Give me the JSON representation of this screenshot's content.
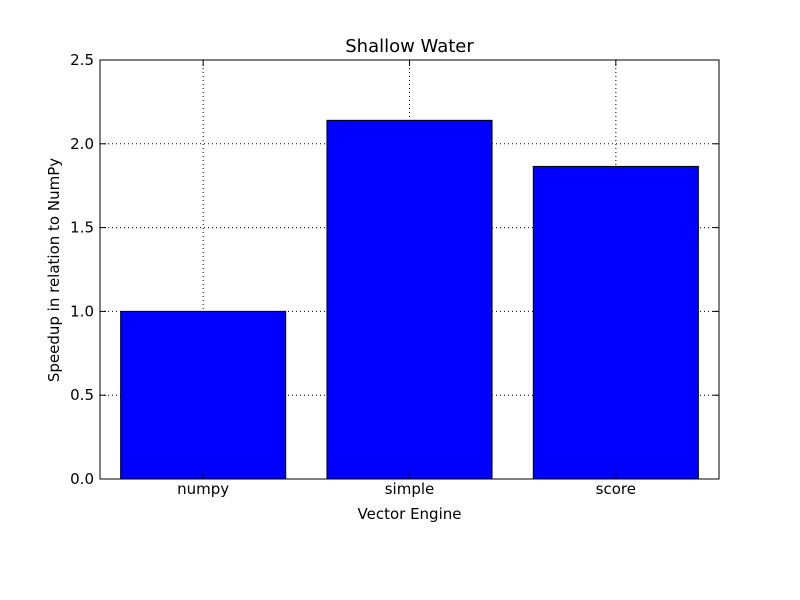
{
  "chart_data": {
    "type": "bar",
    "title": "Shallow Water",
    "xlabel": "Vector Engine",
    "ylabel": "Speedup in relation to NumPy",
    "categories": [
      "numpy",
      "simple",
      "score"
    ],
    "values": [
      1.0,
      2.14,
      1.865
    ],
    "ylim": [
      0,
      2.5
    ],
    "yticks": [
      "0.0",
      "0.5",
      "1.0",
      "1.5",
      "2.0",
      "2.5"
    ],
    "grid": true,
    "bar_color": "#0000ff",
    "edge_color": "#000000"
  }
}
